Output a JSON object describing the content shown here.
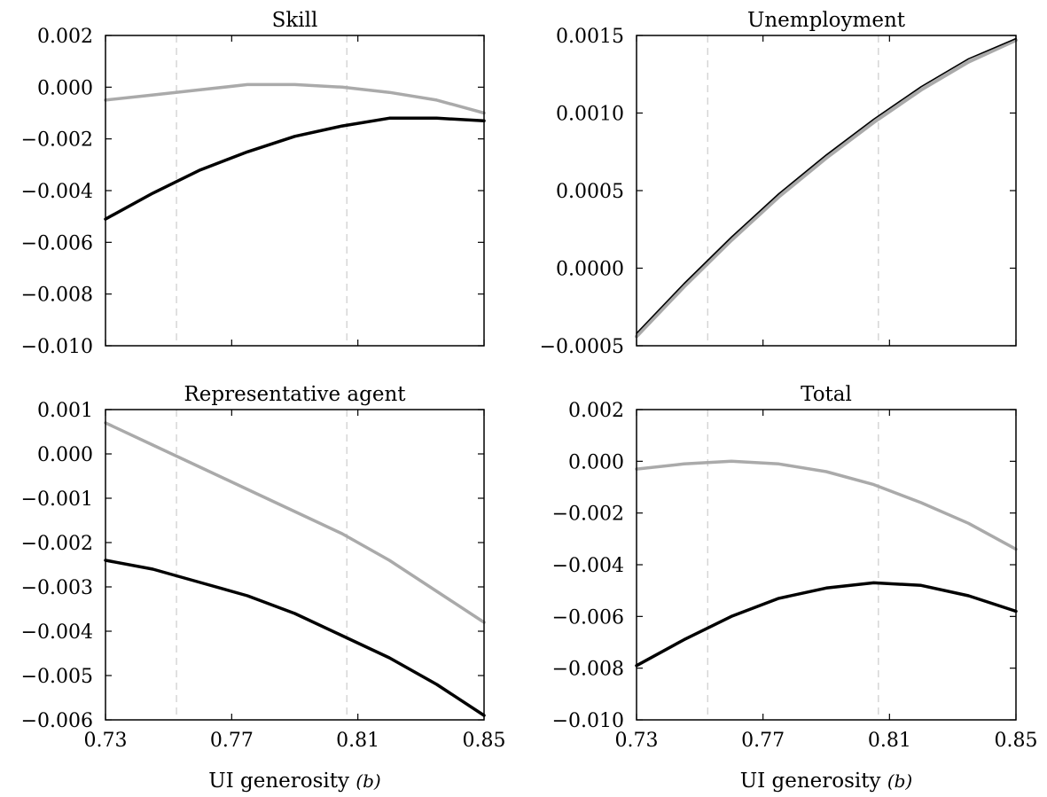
{
  "colors": {
    "black_series": "#000000",
    "gray_series": "#aaaaaa",
    "guide_line": "#cccccc"
  },
  "chart_data": [
    {
      "type": "line",
      "title": "Skill",
      "xlabel": "",
      "ylabel": "",
      "xlim": [
        0.73,
        0.85
      ],
      "ylim": [
        -0.01,
        0.002
      ],
      "xticks": [
        "0.73",
        "0.77",
        "0.81",
        "0.85"
      ],
      "yticks": [
        "0.002",
        "0.000",
        "−0.002",
        "−0.004",
        "−0.006",
        "−0.008",
        "−0.010"
      ],
      "vlines": [
        0.7525,
        0.8065
      ],
      "series": [
        {
          "color": "black",
          "x": [
            0.73,
            0.745,
            0.76,
            0.775,
            0.79,
            0.805,
            0.82,
            0.835,
            0.85
          ],
          "y": [
            -0.0051,
            -0.0041,
            -0.0032,
            -0.0025,
            -0.0019,
            -0.0015,
            -0.0012,
            -0.0012,
            -0.0013
          ]
        },
        {
          "color": "gray",
          "x": [
            0.73,
            0.745,
            0.76,
            0.775,
            0.79,
            0.805,
            0.82,
            0.835,
            0.85
          ],
          "y": [
            -0.0005,
            -0.0003,
            -0.0001,
            0.0001,
            0.0001,
            0.0,
            -0.0002,
            -0.0005,
            -0.001
          ]
        }
      ]
    },
    {
      "type": "line",
      "title": "Unemployment",
      "xlabel": "",
      "ylabel": "",
      "xlim": [
        0.73,
        0.85
      ],
      "ylim": [
        -0.0005,
        0.0015
      ],
      "xticks": [
        "0.73",
        "0.77",
        "0.81",
        "0.85"
      ],
      "yticks": [
        "0.0015",
        "0.0010",
        "0.0005",
        "0.0000",
        "−0.0005"
      ],
      "vlines": [
        0.7525,
        0.8065
      ],
      "series": [
        {
          "color": "gray",
          "x": [
            0.73,
            0.745,
            0.76,
            0.775,
            0.79,
            0.805,
            0.82,
            0.835,
            0.85
          ],
          "y": [
            -0.00044,
            -0.00012,
            0.00018,
            0.00046,
            0.00071,
            0.00094,
            0.00115,
            0.00133,
            0.00147
          ]
        },
        {
          "color": "black",
          "x": [
            0.73,
            0.745,
            0.76,
            0.775,
            0.79,
            0.805,
            0.82,
            0.835,
            0.85
          ],
          "y": [
            -0.00042,
            -0.0001,
            0.0002,
            0.00048,
            0.00073,
            0.00096,
            0.00117,
            0.00135,
            0.00148
          ]
        }
      ]
    },
    {
      "type": "line",
      "title": "Representative agent",
      "xlabel": "UI generosity",
      "xlabel_symbol": "(b)",
      "ylabel": "",
      "xlim": [
        0.73,
        0.85
      ],
      "ylim": [
        -0.006,
        0.001
      ],
      "xticks": [
        "0.73",
        "0.77",
        "0.81",
        "0.85"
      ],
      "yticks": [
        "0.001",
        "0.000",
        "−0.001",
        "−0.002",
        "−0.003",
        "−0.004",
        "−0.005",
        "−0.006"
      ],
      "vlines": [
        0.7525,
        0.8065
      ],
      "series": [
        {
          "color": "black",
          "x": [
            0.73,
            0.745,
            0.76,
            0.775,
            0.79,
            0.805,
            0.82,
            0.835,
            0.85
          ],
          "y": [
            -0.0024,
            -0.0026,
            -0.0029,
            -0.0032,
            -0.0036,
            -0.0041,
            -0.0046,
            -0.0052,
            -0.0059
          ]
        },
        {
          "color": "gray",
          "x": [
            0.73,
            0.745,
            0.76,
            0.775,
            0.79,
            0.805,
            0.82,
            0.835,
            0.85
          ],
          "y": [
            0.0007,
            0.0002,
            -0.0003,
            -0.0008,
            -0.0013,
            -0.0018,
            -0.0024,
            -0.0031,
            -0.0038
          ]
        }
      ]
    },
    {
      "type": "line",
      "title": "Total",
      "xlabel": "UI generosity",
      "xlabel_symbol": "(b)",
      "ylabel": "",
      "xlim": [
        0.73,
        0.85
      ],
      "ylim": [
        -0.01,
        0.002
      ],
      "xticks": [
        "0.73",
        "0.77",
        "0.81",
        "0.85"
      ],
      "yticks": [
        "0.002",
        "0.000",
        "−0.002",
        "−0.004",
        "−0.006",
        "−0.008",
        "−0.010"
      ],
      "vlines": [
        0.7525,
        0.8065
      ],
      "series": [
        {
          "color": "black",
          "x": [
            0.73,
            0.745,
            0.76,
            0.775,
            0.79,
            0.805,
            0.82,
            0.835,
            0.85
          ],
          "y": [
            -0.0079,
            -0.0069,
            -0.006,
            -0.0053,
            -0.0049,
            -0.0047,
            -0.0048,
            -0.0052,
            -0.0058
          ]
        },
        {
          "color": "gray",
          "x": [
            0.73,
            0.745,
            0.76,
            0.775,
            0.79,
            0.805,
            0.82,
            0.835,
            0.85
          ],
          "y": [
            -0.0003,
            -0.0001,
            -0.0,
            -0.0001,
            -0.0004,
            -0.0009,
            -0.0016,
            -0.0024,
            -0.0034
          ]
        }
      ]
    }
  ]
}
